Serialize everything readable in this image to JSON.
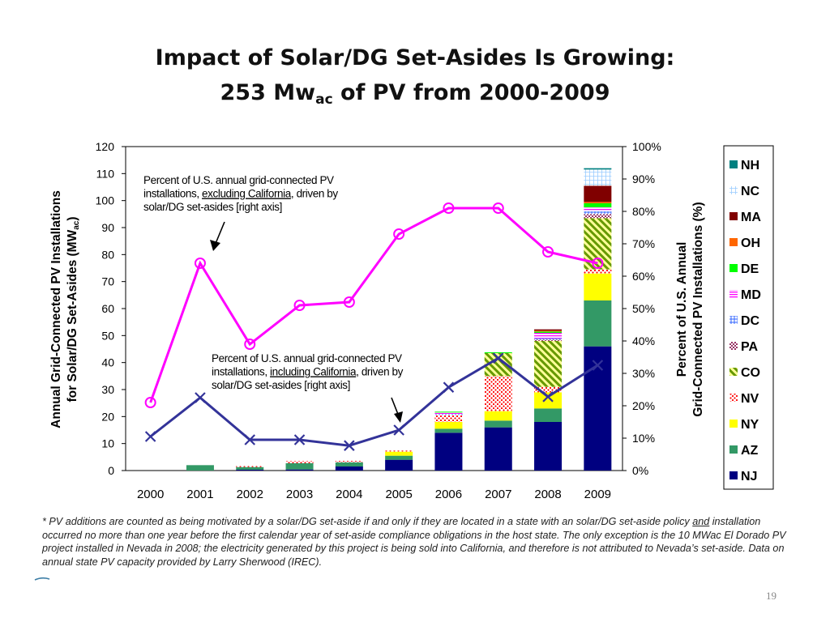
{
  "slide": {
    "title_line1": "Impact of Solar/DG Set-Asides Is Growing:",
    "title_line2_pre": "253 Mw",
    "title_line2_sub": "ac",
    "title_line2_post": " of PV from 2000-2009",
    "footnote": {
      "p1": "* PV additions are counted as being motivated by a solar/DG set-aside if and only if they are located in a state with an solar/DG set-aside policy ",
      "p1_underlined": "and",
      "p2": " installation occurred no more than one year before the first calendar year of set-aside compliance obligations in the host state. The only exception is the 10 MWac El Dorado PV project installed in Nevada in 2008; the electricity generated by this project is being sold into California, and therefore is not attributed to Nevada’s set-aside. Data on annual state PV capacity provided by Larry Sherwood (IREC)."
    },
    "page_number": "19"
  },
  "chart_data": {
    "type": "bar",
    "stacked": true,
    "categories": [
      "2000",
      "2001",
      "2002",
      "2003",
      "2004",
      "2005",
      "2006",
      "2007",
      "2008",
      "2009"
    ],
    "ylabel_line1": "Annual Grid-Connected  PV Installations",
    "ylabel_line2_pre": "for Solar/DG Set-Asides  (MW",
    "ylabel_line2_sub": "ac",
    "ylabel_line2_post": ")",
    "ylim": [
      0,
      120
    ],
    "yticks": [
      0,
      10,
      20,
      30,
      40,
      50,
      60,
      70,
      80,
      90,
      100,
      110,
      120
    ],
    "y2label_line1": "Percent of U.S. Annual",
    "y2label_line2": "Grid-Connected  PV Installations (%)",
    "y2lim": [
      0,
      100
    ],
    "y2ticks": [
      "0%",
      "10%",
      "20%",
      "30%",
      "40%",
      "50%",
      "60%",
      "70%",
      "80%",
      "90%",
      "100%"
    ],
    "legend_position": "right",
    "series": [
      {
        "name": "NJ",
        "color": "#000080",
        "pattern": "solid",
        "values": [
          0,
          0,
          0.3,
          0.4,
          1.5,
          4,
          14,
          16,
          18,
          46
        ]
      },
      {
        "name": "AZ",
        "color": "#339966",
        "pattern": "solid",
        "values": [
          0,
          2,
          1.0,
          2.3,
          1.5,
          1.5,
          1.5,
          2.5,
          5,
          17
        ]
      },
      {
        "name": "NY",
        "color": "#ffff00",
        "pattern": "solid",
        "values": [
          0,
          0,
          0,
          0,
          0,
          1.5,
          2.5,
          3.5,
          6,
          10
        ]
      },
      {
        "name": "NV",
        "color": "#ff0000",
        "pattern": "dots",
        "values": [
          0,
          0,
          0.5,
          0.8,
          0.6,
          0.4,
          2.5,
          13,
          2,
          1.5
        ]
      },
      {
        "name": "CO",
        "color": "#99cc00",
        "pattern": "diagonal",
        "values": [
          0,
          0,
          0,
          0,
          0,
          0,
          0,
          8.5,
          17,
          19
        ]
      },
      {
        "name": "PA",
        "color": "#993366",
        "pattern": "checks",
        "values": [
          0,
          0,
          0,
          0,
          0,
          0,
          0,
          0,
          0.5,
          1.5
        ]
      },
      {
        "name": "DC",
        "color": "#3366ff",
        "pattern": "grid",
        "values": [
          0,
          0,
          0,
          0,
          0,
          0,
          0.5,
          0,
          0.5,
          1
        ]
      },
      {
        "name": "MD",
        "color": "#ff00ff",
        "pattern": "hstripes",
        "values": [
          0,
          0,
          0,
          0,
          0,
          0,
          0.5,
          0,
          2,
          1.5
        ]
      },
      {
        "name": "DE",
        "color": "#00ff00",
        "pattern": "solid",
        "values": [
          0,
          0,
          0,
          0,
          0,
          0,
          0.3,
          0.3,
          0.5,
          1.5
        ]
      },
      {
        "name": "OH",
        "color": "#ff6600",
        "pattern": "solid",
        "values": [
          0,
          0,
          0,
          0,
          0,
          0,
          0,
          0,
          0.3,
          0.5
        ]
      },
      {
        "name": "MA",
        "color": "#800000",
        "pattern": "solid",
        "values": [
          0,
          0,
          0,
          0,
          0,
          0,
          0,
          0,
          0.5,
          6
        ]
      },
      {
        "name": "NC",
        "color": "#99ccff",
        "pattern": "grid",
        "values": [
          0,
          0,
          0,
          0,
          0,
          0,
          0,
          0,
          0,
          6
        ]
      },
      {
        "name": "NH",
        "color": "#008080",
        "pattern": "solid",
        "values": [
          0,
          0,
          0,
          0,
          0,
          0,
          0,
          0,
          0,
          0.5
        ]
      }
    ],
    "lines": [
      {
        "axis": "right",
        "color": "#ff00ff",
        "marker": "circle",
        "values": [
          21,
          64,
          39,
          51,
          52,
          73,
          81,
          81,
          67.5,
          64
        ]
      },
      {
        "axis": "right",
        "color": "#333399",
        "marker": "x",
        "values": [
          10.5,
          22.5,
          9.5,
          9.5,
          7.7,
          12.5,
          25.7,
          34.7,
          22.8,
          32.5
        ]
      }
    ],
    "annotations": [
      {
        "id": "excl",
        "line1": "Percent of U.S. annual grid-connected PV",
        "line2_pre": "installations, ",
        "line2_u": "excluding California",
        "line2_post": ", driven by",
        "line3": "solar/DG set-asides [right axis]"
      },
      {
        "id": "incl",
        "line1": "Percent of U.S. annual grid-connected PV",
        "line2_pre": "installations, ",
        "line2_u": "including California",
        "line2_post": ", driven by",
        "line3": "solar/DG set-asides [right axis]"
      }
    ]
  }
}
